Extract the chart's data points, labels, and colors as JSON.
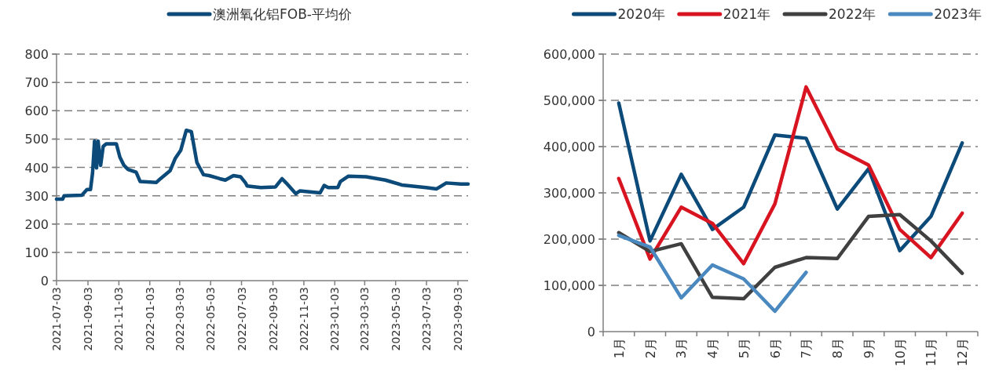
{
  "chart_data": [
    {
      "type": "line",
      "legend": "top",
      "grid": "y",
      "marker": "none",
      "line_style": "solid",
      "xlim": [
        "2021-07-03",
        "2023-09-23"
      ],
      "xticks": [
        "2021-07-03",
        "2021-09-03",
        "2021-11-03",
        "2022-01-03",
        "2022-03-03",
        "2022-05-03",
        "2022-07-03",
        "2022-09-03",
        "2022-11-03",
        "2023-01-03",
        "2023-03-03",
        "2023-05-03",
        "2023-07-03",
        "2023-09-03"
      ],
      "ylim": [
        0,
        800
      ],
      "yticks": [
        0,
        100,
        200,
        300,
        400,
        500,
        600,
        700,
        800
      ],
      "series": [
        {
          "name": "澳洲氧化铝FOB-平均价",
          "color": "#0c4a7a",
          "x": [
            "2021-07-03",
            "2021-07-15",
            "2021-07-18",
            "2021-08-22",
            "2021-09-01",
            "2021-09-08",
            "2021-09-12",
            "2021-09-16",
            "2021-09-20",
            "2021-09-23",
            "2021-09-28",
            "2021-10-03",
            "2021-10-09",
            "2021-10-29",
            "2021-11-05",
            "2021-11-13",
            "2021-11-21",
            "2021-12-07",
            "2021-12-15",
            "2022-01-16",
            "2022-01-24",
            "2022-02-12",
            "2022-02-22",
            "2022-03-05",
            "2022-03-16",
            "2022-03-26",
            "2022-04-06",
            "2022-04-19",
            "2022-04-30",
            "2022-05-21",
            "2022-06-01",
            "2022-06-17",
            "2022-07-01",
            "2022-07-11",
            "2022-07-14",
            "2022-08-10",
            "2022-09-08",
            "2022-09-21",
            "2022-09-29",
            "2022-10-18",
            "2022-10-26",
            "2022-12-05",
            "2022-12-13",
            "2022-12-21",
            "2023-01-09",
            "2023-01-14",
            "2023-01-30",
            "2023-03-06",
            "2023-04-13",
            "2023-05-15",
            "2023-07-02",
            "2023-07-23",
            "2023-08-11",
            "2023-09-09",
            "2023-09-23"
          ],
          "values": [
            288,
            288,
            300,
            302,
            322,
            322,
            379,
            493,
            398,
            493,
            407,
            474,
            483,
            483,
            436,
            407,
            393,
            383,
            350,
            347,
            360,
            388,
            431,
            460,
            531,
            526,
            417,
            374,
            371,
            360,
            355,
            371,
            367,
            345,
            334,
            329,
            331,
            360,
            345,
            307,
            317,
            310,
            336,
            329,
            329,
            350,
            369,
            367,
            355,
            338,
            329,
            324,
            345,
            341,
            341
          ]
        }
      ]
    },
    {
      "type": "line",
      "legend": "top",
      "grid": "y",
      "marker": "none",
      "line_style": "solid",
      "categories": [
        "1月",
        "2月",
        "3月",
        "4月",
        "5月",
        "6月",
        "7月",
        "8月",
        "9月",
        "10月",
        "11月",
        "12月"
      ],
      "ylim": [
        0,
        600000
      ],
      "yticks": [
        {
          "value": 0,
          "label": "0"
        },
        {
          "value": 100000,
          "label": "100,000"
        },
        {
          "value": 200000,
          "label": "200,000"
        },
        {
          "value": 300000,
          "label": "300,000"
        },
        {
          "value": 400000,
          "label": "400,000"
        },
        {
          "value": 500000,
          "label": "500,000"
        },
        {
          "value": 600000,
          "label": "600,000"
        }
      ],
      "series": [
        {
          "name": "2020年",
          "color": "#0c4a7a",
          "values": [
            494000,
            196000,
            340000,
            221000,
            269000,
            425000,
            418000,
            265000,
            352000,
            175000,
            249000,
            408000
          ]
        },
        {
          "name": "2021年",
          "color": "#d7141f",
          "values": [
            331000,
            157000,
            269000,
            234000,
            147000,
            276000,
            529000,
            395000,
            360000,
            221000,
            160000,
            256000
          ]
        },
        {
          "name": "2022年",
          "color": "#404040",
          "values": [
            214000,
            173000,
            190000,
            74000,
            71000,
            139000,
            160000,
            158000,
            249000,
            253000,
            196000,
            126000
          ]
        },
        {
          "name": "2023年",
          "color": "#4a88c0",
          "values": [
            208000,
            183000,
            73000,
            144000,
            114000,
            44000,
            128000,
            null,
            null,
            null,
            null,
            null
          ]
        }
      ]
    }
  ]
}
